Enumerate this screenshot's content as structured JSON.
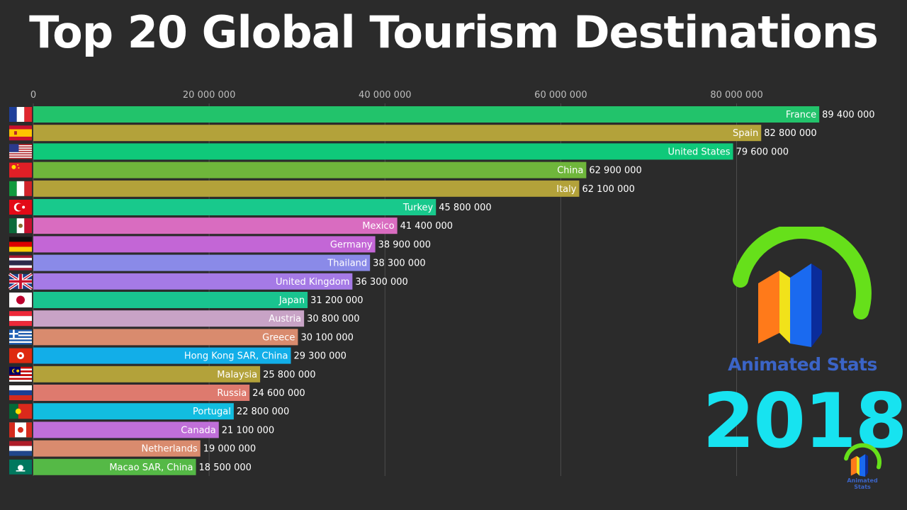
{
  "title": "Top 20 Global Tourism Destinations",
  "brand": {
    "name": "Animated Stats",
    "small_name": "Animated Stats"
  },
  "year": "2018",
  "chart_data": {
    "type": "bar",
    "orientation": "horizontal",
    "title": "Top 20 Global Tourism Destinations",
    "xlabel": "",
    "ylabel": "",
    "xlim": [
      0,
      90000000
    ],
    "x_ticks": [
      0,
      20000000,
      40000000,
      60000000,
      80000000
    ],
    "x_tick_labels": [
      "0",
      "20 000 000",
      "40 000 000",
      "60 000 000",
      "80 000 000"
    ],
    "grid": true,
    "categories": [
      "France",
      "Spain",
      "United States",
      "China",
      "Italy",
      "Turkey",
      "Mexico",
      "Germany",
      "Thailand",
      "United Kingdom",
      "Japan",
      "Austria",
      "Greece",
      "Hong Kong SAR, China",
      "Malaysia",
      "Russia",
      "Portugal",
      "Canada",
      "Netherlands",
      "Macao SAR, China"
    ],
    "values": [
      89400000,
      82800000,
      79600000,
      62900000,
      62100000,
      45800000,
      41400000,
      38900000,
      38300000,
      36300000,
      31200000,
      30800000,
      30100000,
      29300000,
      25800000,
      24600000,
      22800000,
      21100000,
      19000000,
      18500000
    ],
    "value_labels": [
      "89 400 000",
      "82 800 000",
      "79 600 000",
      "62 900 000",
      "62 100 000",
      "45 800 000",
      "41 400 000",
      "38 900 000",
      "38 300 000",
      "36 300 000",
      "31 200 000",
      "30 800 000",
      "30 100 000",
      "29 300 000",
      "25 800 000",
      "24 600 000",
      "22 800 000",
      "21 100 000",
      "19 000 000",
      "18 500 000"
    ],
    "colors": [
      "#22c36b",
      "#b3a23a",
      "#0fc97a",
      "#6fb63b",
      "#b3a23a",
      "#18c98c",
      "#d96cc0",
      "#c366d6",
      "#8a8ae8",
      "#a57ae6",
      "#19c48f",
      "#c8a3c6",
      "#d98b6e",
      "#12aee8",
      "#b3a23a",
      "#de7a6e",
      "#12bde0",
      "#c06fd9",
      "#d98b6e",
      "#55b946"
    ],
    "flags": [
      "france-flag",
      "spain-flag",
      "usa-flag",
      "china-flag",
      "italy-flag",
      "turkey-flag",
      "mexico-flag",
      "germany-flag",
      "thailand-flag",
      "uk-flag",
      "japan-flag",
      "austria-flag",
      "greece-flag",
      "hong-kong-flag",
      "malaysia-flag",
      "russia-flag",
      "portugal-flag",
      "canada-flag",
      "netherlands-flag",
      "macao-flag"
    ]
  }
}
